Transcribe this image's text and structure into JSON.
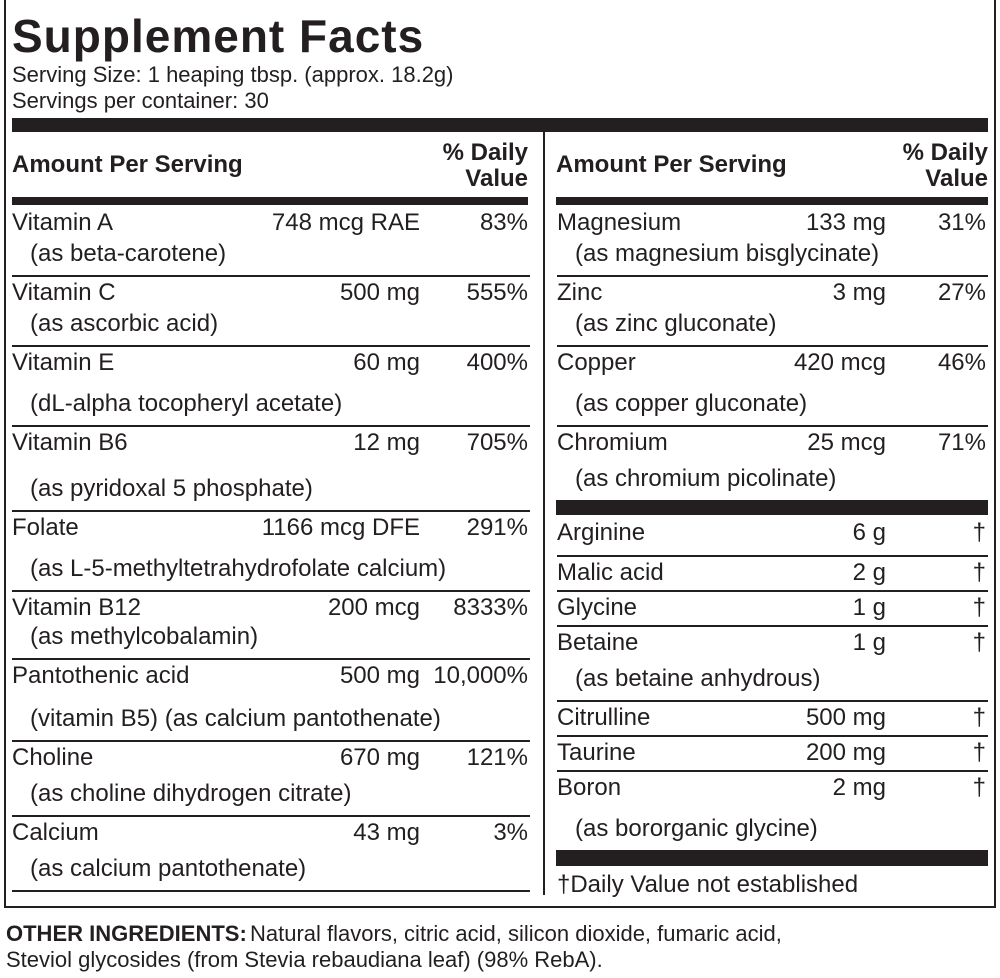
{
  "title": "Supplement Facts",
  "serving_size": "Serving Size: 1 heaping tbsp. (approx. 18.2g)",
  "servings_per_container": "Servings per container: 30",
  "left": {
    "header": {
      "amount": "Amount Per Serving",
      "dv": "% Daily Value"
    },
    "rows": [
      {
        "name": "Vitamin A",
        "amount": "748 mcg RAE",
        "dv": "83%",
        "note": "(as beta-carotene)"
      },
      {
        "name": "Vitamin C",
        "amount": "500 mg",
        "dv": "555%",
        "note": "(as ascorbic acid)"
      },
      {
        "name": "Vitamin E",
        "amount": "60 mg",
        "dv": "400%",
        "note": "(dL-alpha tocopheryl acetate)"
      },
      {
        "name": "Vitamin B6",
        "amount": "12 mg",
        "dv": "705%",
        "note": "(as pyridoxal 5 phosphate)"
      },
      {
        "name": "Folate",
        "amount": "1166 mcg DFE",
        "dv": "291%",
        "note": "(as L-5-methyltetrahydrofolate calcium)"
      },
      {
        "name": "Vitamin B12",
        "amount": "200 mcg",
        "dv": "8333%",
        "note": "(as methylcobalamin)"
      },
      {
        "name": "Pantothenic acid",
        "amount": "500 mg",
        "dv": "10,000%",
        "note": "(vitamin B5) (as calcium pantothenate)"
      },
      {
        "name": "Choline",
        "amount": "670 mg",
        "dv": "121%",
        "note": "(as choline dihydrogen citrate)"
      },
      {
        "name": "Calcium",
        "amount": "43 mg",
        "dv": "3%",
        "note": "(as calcium pantothenate)"
      }
    ]
  },
  "right": {
    "header": {
      "amount": "Amount Per Serving",
      "dv": "% Daily Value"
    },
    "rows": [
      {
        "name": "Magnesium",
        "amount": "133 mg",
        "dv": "31%",
        "note": "(as magnesium bisglycinate)"
      },
      {
        "name": "Zinc",
        "amount": "3 mg",
        "dv": "27%",
        "note": "(as zinc gluconate)"
      },
      {
        "name": "Copper",
        "amount": "420 mcg",
        "dv": "46%",
        "note": "(as copper gluconate)"
      },
      {
        "name": "Chromium",
        "amount": "25 mcg",
        "dv": "71%",
        "note": "(as chromium picolinate)"
      }
    ],
    "rows2": [
      {
        "name": "Arginine",
        "amount": "6 g",
        "dv": "†"
      },
      {
        "name": "Malic acid",
        "amount": "2 g",
        "dv": "†"
      },
      {
        "name": "Glycine",
        "amount": "1 g",
        "dv": "†"
      },
      {
        "name": "Betaine",
        "amount": "1 g",
        "dv": "†",
        "note": "(as betaine anhydrous)"
      },
      {
        "name": "Citrulline",
        "amount": "500 mg",
        "dv": "†"
      },
      {
        "name": "Taurine",
        "amount": "200 mg",
        "dv": "†"
      },
      {
        "name": "Boron",
        "amount": "2 mg",
        "dv": "†",
        "note": "(as bororganic glycine)"
      }
    ]
  },
  "footnote": "†Daily Value not established",
  "other_ingredients": {
    "label": "OTHER INGREDIENTS:",
    "lines": [
      "Natural flavors, citric acid, silicon dioxide, fumaric acid,",
      "Steviol glycosides (from Stevia rebaudiana leaf) (98% RebA)."
    ]
  }
}
